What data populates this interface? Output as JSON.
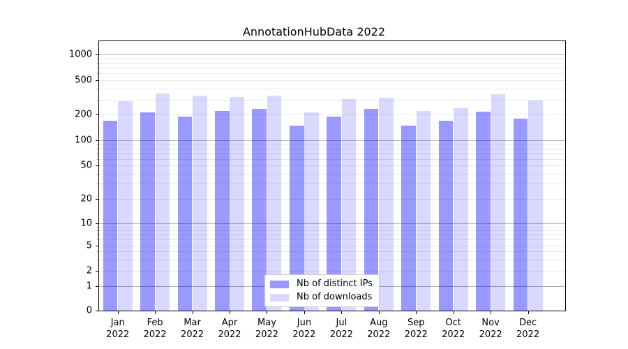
{
  "title": "AnnotationHubData 2022",
  "legend": {
    "items": [
      {
        "label": "Nb of distinct IPs",
        "color": "rgba(0,0,255,0.4)"
      },
      {
        "label": "Nb of downloads",
        "color": "rgba(0,0,255,0.15)"
      }
    ]
  },
  "y_axis": {
    "tick_labels": [
      "1000",
      "500",
      "200",
      "100",
      "50",
      "20",
      "10",
      "5",
      "2",
      "1",
      "0"
    ]
  },
  "x_axis": {
    "months": [
      "Jan",
      "Feb",
      "Mar",
      "Apr",
      "May",
      "Jun",
      "Jul",
      "Aug",
      "Sep",
      "Oct",
      "Nov",
      "Dec"
    ],
    "year": "2022"
  },
  "chart_data": {
    "type": "bar",
    "categories": [
      "Jan 2022",
      "Feb 2022",
      "Mar 2022",
      "Apr 2022",
      "May 2022",
      "Jun 2022",
      "Jul 2022",
      "Aug 2022",
      "Sep 2022",
      "Oct 2022",
      "Nov 2022",
      "Dec 2022"
    ],
    "series": [
      {
        "name": "Nb of distinct IPs",
        "values": [
          170,
          215,
          190,
          222,
          235,
          150,
          190,
          233,
          148,
          170,
          218,
          180
        ]
      },
      {
        "name": "Nb of downloads",
        "values": [
          285,
          350,
          333,
          319,
          333,
          212,
          303,
          313,
          222,
          237,
          344,
          294
        ]
      }
    ],
    "title": "AnnotationHubData 2022",
    "xlabel": "",
    "ylabel": "",
    "yscale": "symlog",
    "y_ticks": [
      0,
      1,
      2,
      5,
      10,
      20,
      50,
      100,
      200,
      500,
      1000
    ],
    "ylim": [
      0,
      1450
    ],
    "grid": true,
    "legend_position": "lower center",
    "bar_colors": [
      "rgba(0,0,255,0.4)",
      "rgba(0,0,255,0.15)"
    ]
  }
}
